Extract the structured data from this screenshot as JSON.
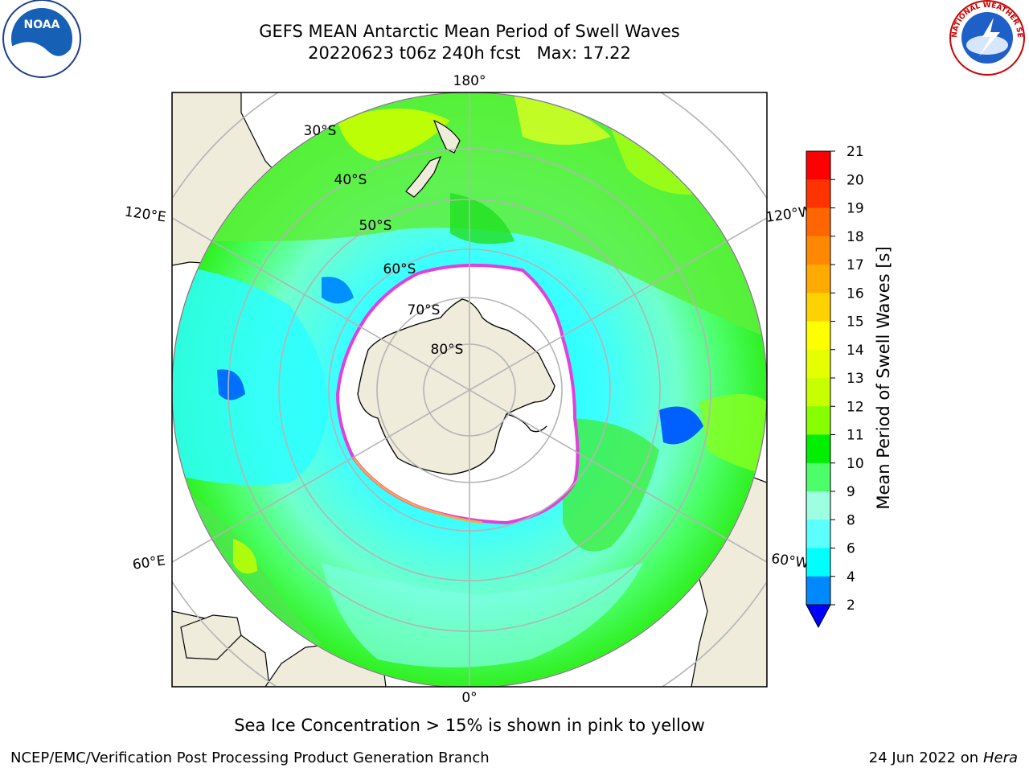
{
  "title": {
    "line1": "GEFS MEAN Antarctic Mean Period of Swell Waves",
    "line2": "20220623 t06z 240h fcst   Max: 17.22"
  },
  "caption": "Sea Ice Concentration > 15% is shown in pink to yellow",
  "footer": {
    "left": "NCEP/EMC/Verification Post Processing Product Generation Branch",
    "date": "24 Jun 2022 on",
    "machine": "Hera"
  },
  "logos": {
    "noaa_text": "NOAA",
    "nws_text": "NATIONAL WEATHER SERVICE"
  },
  "map": {
    "projection": "south-polar-stereographic",
    "longitude_labels": [
      "180°",
      "120°E",
      "120°W",
      "60°E",
      "60°W",
      "0°"
    ],
    "latitude_labels": [
      "30°S",
      "40°S",
      "50°S",
      "60°S",
      "70°S",
      "80°S"
    ],
    "land_color": "#efecdc",
    "sea_ice_color": "#ffffff",
    "ice_edge_color": "#e23fdc",
    "grid_color": "#b4b4b4"
  },
  "colorbar": {
    "title": "Mean Period of Swell Waves [s]",
    "ticks": [
      "21",
      "20",
      "19",
      "18",
      "17",
      "16",
      "15",
      "14",
      "13",
      "12",
      "11",
      "10",
      "9",
      "8",
      "6",
      "4",
      "2"
    ],
    "colors_top_to_bottom": [
      "#ff0000",
      "#ff3300",
      "#ff6600",
      "#ff8800",
      "#ffaa00",
      "#ffd200",
      "#ffff00",
      "#e6ff00",
      "#c8ff00",
      "#88ff00",
      "#00ee00",
      "#4cff6a",
      "#9cffe0",
      "#5cffff",
      "#00ffff",
      "#0088ff"
    ],
    "underflow_color": "#0000ff"
  }
}
